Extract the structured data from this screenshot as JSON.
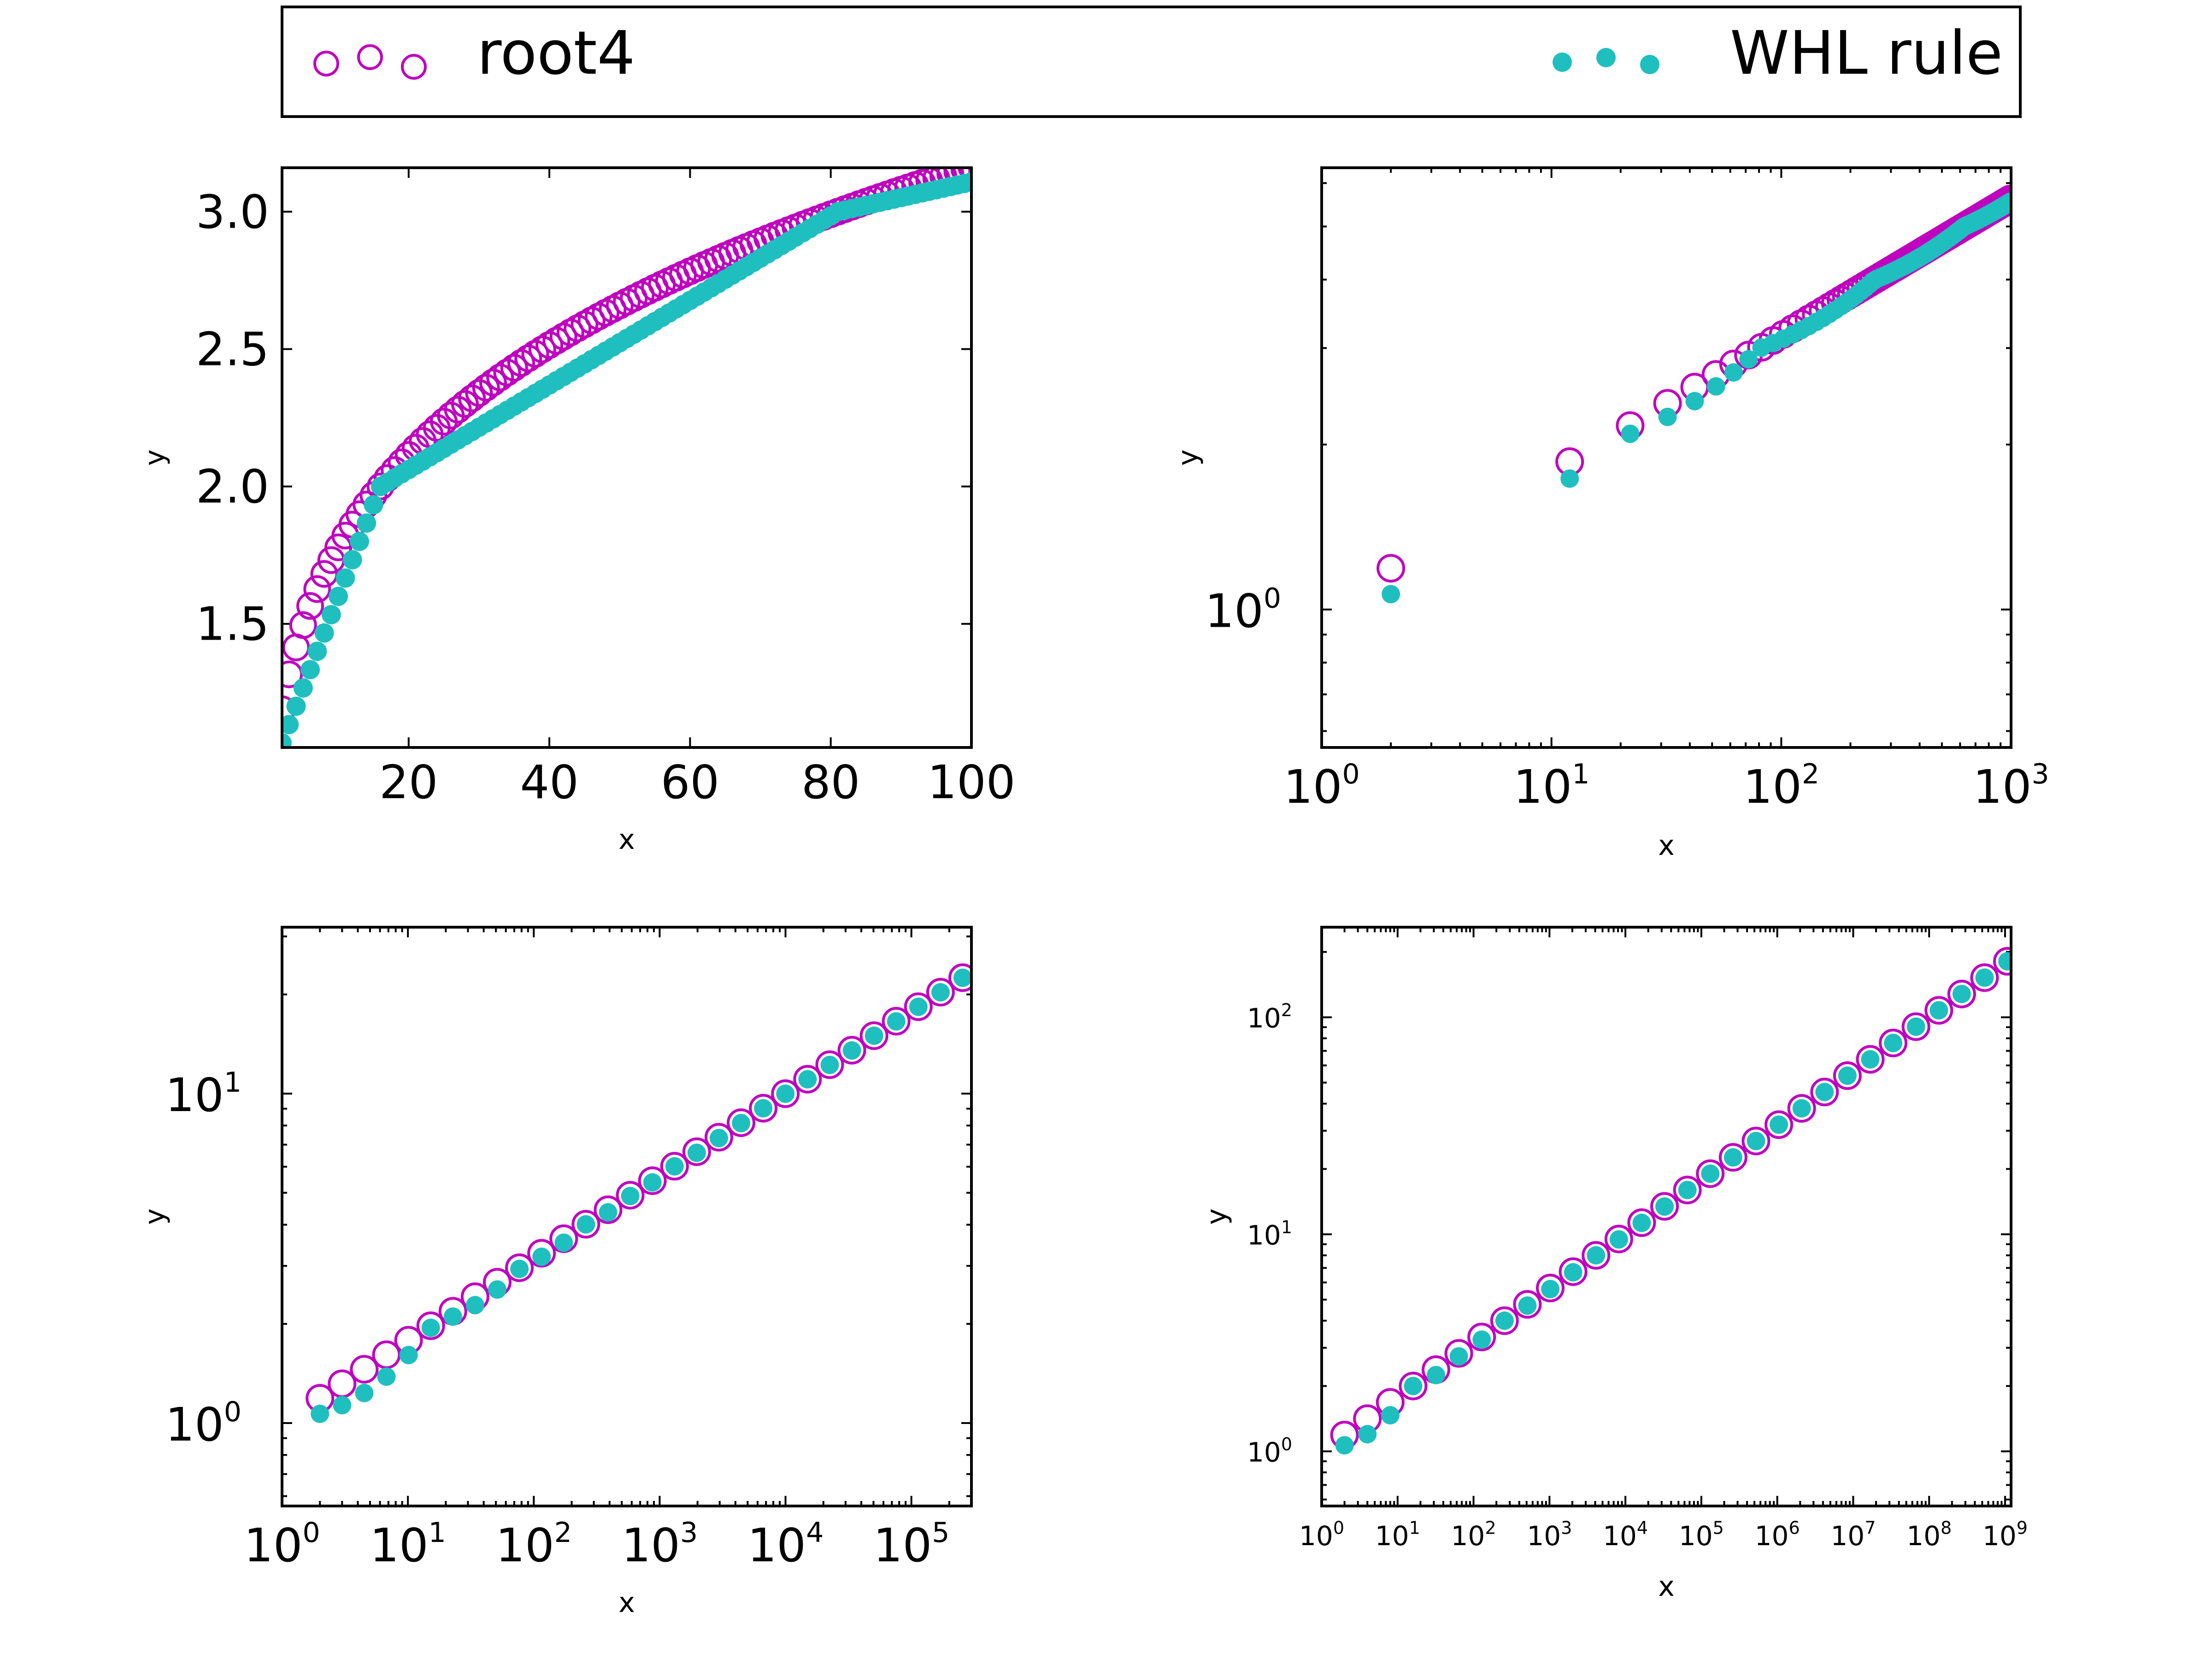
{
  "legend": {
    "entries": [
      {
        "label": "root4",
        "marker": "open-circle",
        "color": "#bf00bf"
      },
      {
        "label": "WHL rule",
        "marker": "filled-circle",
        "color": "#1fbfbf"
      }
    ],
    "placement": "top, above all subplots, spanning full width"
  },
  "colors": {
    "root4": "#bf00bf",
    "whl": "#1fbfbf",
    "axes": "#000000",
    "background": "#ffffff"
  },
  "chart_data": [
    {
      "type": "scatter",
      "panel": "top-left",
      "xlabel": "x",
      "ylabel": "y",
      "xscale": "linear",
      "yscale": "linear",
      "xlim": [
        2,
        100
      ],
      "ylim": [
        1.05,
        3.16
      ],
      "xticks": [
        20,
        40,
        60,
        80,
        100
      ],
      "xtick_labels": [
        "20",
        "40",
        "60",
        "80",
        "100"
      ],
      "yticks": [
        1.5,
        2.0,
        2.5,
        3.0
      ],
      "ytick_labels": [
        "1.5",
        "2.0",
        "2.5",
        "3.0"
      ],
      "grid": false,
      "series": [
        {
          "name": "root4",
          "rule": "y = x^(1/4)",
          "x_range": [
            2,
            100
          ],
          "x_step": 1
        },
        {
          "name": "WHL rule",
          "rule": "piecewise-linear interpolation of x^(1/4) between 1, 16, 81, 256",
          "x_range": [
            2,
            100
          ],
          "x_step": 1
        }
      ]
    },
    {
      "type": "scatter",
      "panel": "top-right",
      "xlabel": "x",
      "ylabel": "y",
      "xscale": "log",
      "yscale": "log",
      "xlim": [
        1,
        1000
      ],
      "ylim": [
        0.56,
        6.4
      ],
      "xtick_labels": [
        [
          "10",
          "0"
        ],
        [
          "10",
          "1"
        ],
        [
          "10",
          "2"
        ],
        [
          "10",
          "3"
        ]
      ],
      "ytick_labels": [
        [
          "10",
          "0"
        ]
      ],
      "grid": false,
      "series": [
        {
          "name": "root4",
          "rule": "y = x^(1/4)",
          "x_start": 2,
          "x_end": 1000,
          "x_step": 10
        },
        {
          "name": "WHL rule",
          "rule": "piecewise-linear interpolation of x^(1/4) at integer fourth powers",
          "x_start": 2,
          "x_end": 1000,
          "x_step": 10
        }
      ]
    },
    {
      "type": "scatter",
      "panel": "bottom-left",
      "xlabel": "x",
      "ylabel": "y",
      "xscale": "log",
      "yscale": "log",
      "xlim": [
        1,
        300000
      ],
      "ylim": [
        0.56,
        32
      ],
      "xtick_labels": [
        [
          "10",
          "0"
        ],
        [
          "10",
          "1"
        ],
        [
          "10",
          "2"
        ],
        [
          "10",
          "3"
        ],
        [
          "10",
          "4"
        ],
        [
          "10",
          "5"
        ]
      ],
      "ytick_labels": [
        [
          "10",
          "0"
        ],
        [
          "10",
          "1"
        ]
      ],
      "grid": false,
      "series": [
        {
          "name": "root4",
          "rule": "y = x^(1/4)",
          "x_start": 2,
          "x_factor": 1.5,
          "count": 31
        },
        {
          "name": "WHL rule",
          "rule": "piecewise-linear interpolation of x^(1/4) at integer fourth powers",
          "x_start": 2,
          "x_factor": 1.5,
          "count": 31
        }
      ]
    },
    {
      "type": "scatter",
      "panel": "bottom-right",
      "xlabel": "x",
      "ylabel": "y",
      "xscale": "log",
      "yscale": "log",
      "xlim": [
        1,
        1200000000
      ],
      "ylim": [
        0.56,
        260
      ],
      "xtick_labels": [
        [
          "10",
          "0"
        ],
        [
          "10",
          "1"
        ],
        [
          "10",
          "2"
        ],
        [
          "10",
          "3"
        ],
        [
          "10",
          "4"
        ],
        [
          "10",
          "5"
        ],
        [
          "10",
          "6"
        ],
        [
          "10",
          "7"
        ],
        [
          "10",
          "8"
        ],
        [
          "10",
          "9"
        ]
      ],
      "ytick_labels": [
        [
          "10",
          "0"
        ],
        [
          "10",
          "1"
        ],
        [
          "10",
          "2"
        ]
      ],
      "grid": false,
      "series": [
        {
          "name": "root4",
          "rule": "y = x^(1/4)",
          "x_start": 2,
          "x_factor": 2,
          "count": 30
        },
        {
          "name": "WHL rule",
          "rule": "piecewise-linear interpolation of x^(1/4) at integer fourth powers",
          "x_start": 2,
          "x_factor": 2,
          "count": 30
        }
      ]
    }
  ]
}
